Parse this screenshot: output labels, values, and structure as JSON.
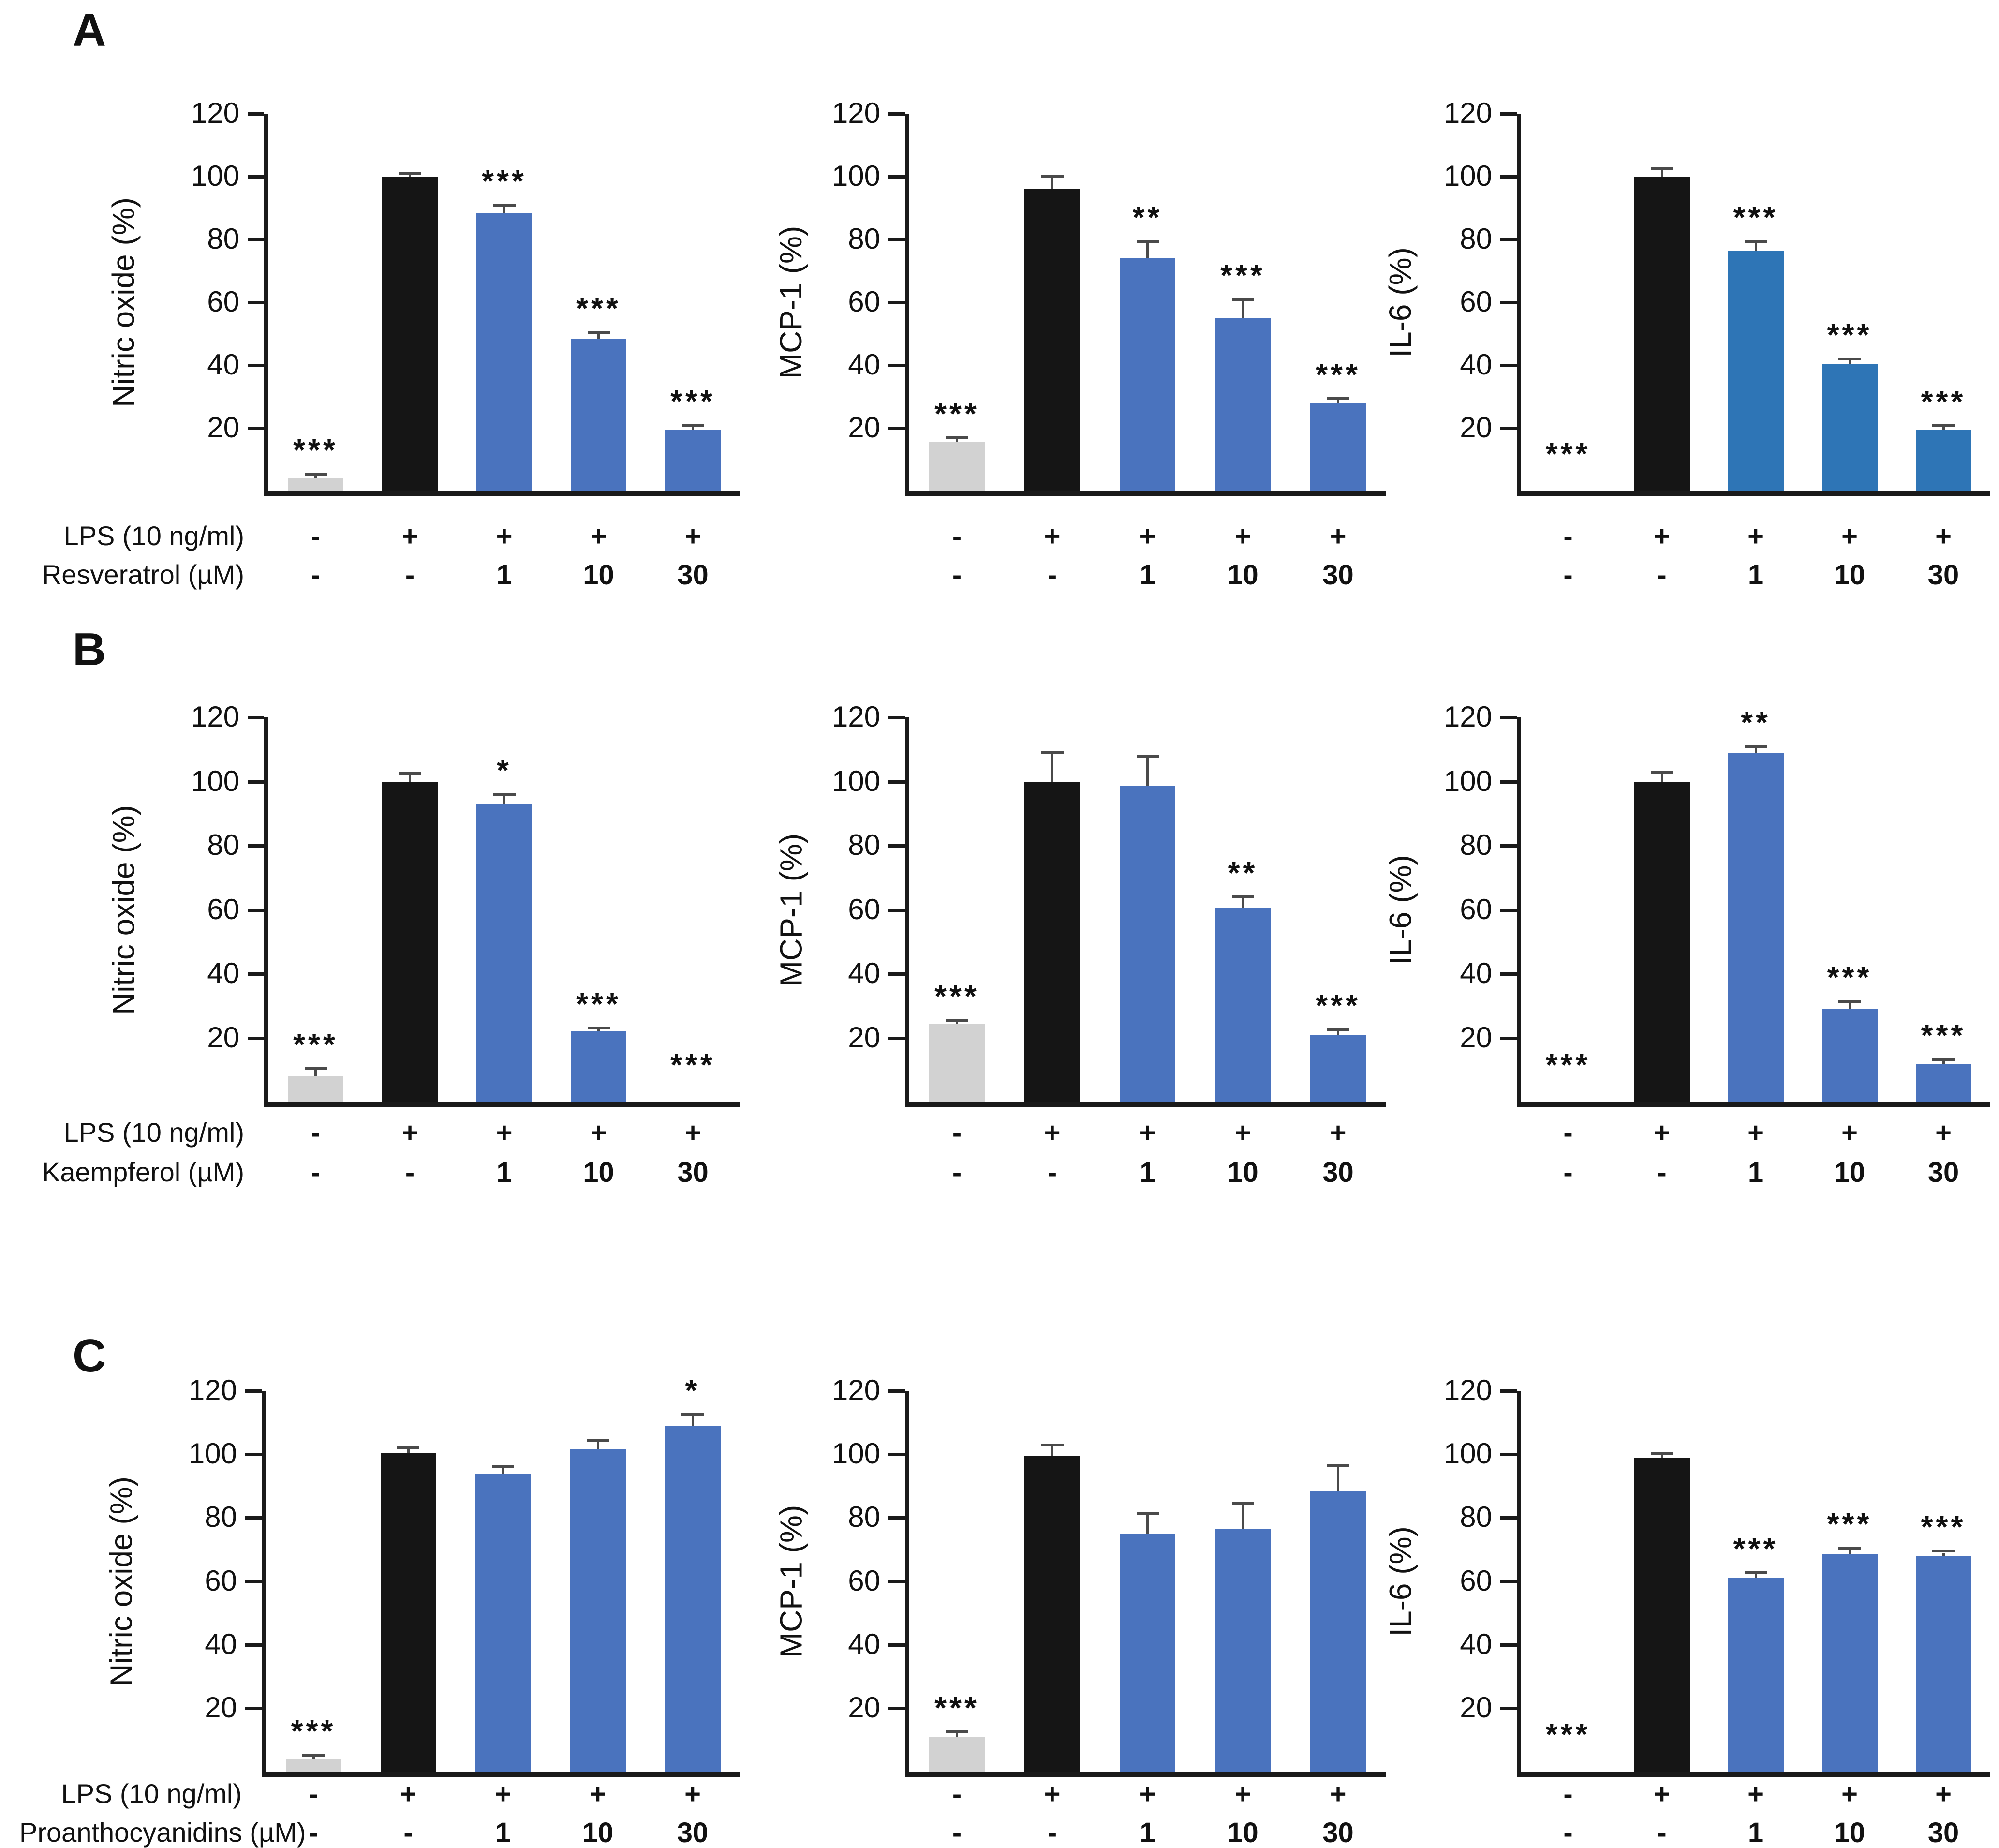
{
  "figure": {
    "panels": [
      {
        "letter": "A",
        "treatment_label": "Resveratrol (µM)"
      },
      {
        "letter": "B",
        "treatment_label": "Kaempferol (µM)"
      },
      {
        "letter": "C",
        "treatment_label": "Proanthocyanidins (µM)"
      }
    ],
    "lps_label": "LPS (10 ng/ml)",
    "colors": {
      "control_bar": "#d2d2d2",
      "lps_bar": "#151515",
      "treatment_bar": "#4a73be",
      "treatment_bar_alt": "#2e75b6",
      "error_bar": "#4a4a4a",
      "axis": "#1a1a1a"
    }
  },
  "chart_data": [
    {
      "type": "bar",
      "panel": "A",
      "ylabel": "Nitric oxide (%)",
      "ylim": [
        0,
        120
      ],
      "yticks": [
        20,
        40,
        60,
        80,
        100,
        120
      ],
      "grid": false,
      "legend": "none",
      "lps_row": [
        "-",
        "+",
        "+",
        "+",
        "+"
      ],
      "treatment_label": "Resveratrol (µM)",
      "treatment_row": [
        "-",
        "-",
        "1",
        "10",
        "30"
      ],
      "values": [
        4,
        100,
        88.5,
        48.5,
        19.5
      ],
      "errors": [
        1,
        0.5,
        2,
        1.5,
        1
      ],
      "significance": [
        "***",
        "",
        "***",
        "***",
        "***"
      ],
      "bar_color": "#4a73be"
    },
    {
      "type": "bar",
      "panel": "A",
      "ylabel": "MCP-1 (%)",
      "ylim": [
        0,
        120
      ],
      "yticks": [
        20,
        40,
        60,
        80,
        100,
        120
      ],
      "grid": false,
      "legend": "none",
      "lps_row": [
        "-",
        "+",
        "+",
        "+",
        "+"
      ],
      "treatment_label": "Resveratrol (µM)",
      "treatment_row": [
        "-",
        "-",
        "1",
        "10",
        "30"
      ],
      "values": [
        15.5,
        96,
        74,
        55,
        28
      ],
      "errors": [
        1,
        3.5,
        5,
        5.5,
        1
      ],
      "significance": [
        "***",
        "",
        "**",
        "***",
        "***"
      ],
      "bar_color": "#4a73be"
    },
    {
      "type": "bar",
      "panel": "A",
      "ylabel": "IL-6 (%)",
      "ylim": [
        0,
        120
      ],
      "yticks": [
        20,
        40,
        60,
        80,
        100,
        120
      ],
      "grid": false,
      "legend": "none",
      "lps_row": [
        "-",
        "+",
        "+",
        "+",
        "+"
      ],
      "treatment_label": "Resveratrol (µM)",
      "treatment_row": [
        "-",
        "-",
        "1",
        "10",
        "30"
      ],
      "values": [
        0,
        100,
        76.5,
        40.5,
        19.5
      ],
      "errors": [
        0,
        2,
        2.5,
        1,
        0.8
      ],
      "significance": [
        "***",
        "",
        "***",
        "***",
        "***"
      ],
      "bar_color": "#2e75b6"
    },
    {
      "type": "bar",
      "panel": "B",
      "ylabel": "Nitric oxide (%)",
      "ylim": [
        0,
        120
      ],
      "yticks": [
        20,
        40,
        60,
        80,
        100,
        120
      ],
      "grid": false,
      "legend": "none",
      "lps_row": [
        "-",
        "+",
        "+",
        "+",
        "+"
      ],
      "treatment_label": "Kaempferol (µM)",
      "treatment_row": [
        "-",
        "-",
        "1",
        "10",
        "30"
      ],
      "values": [
        8,
        100,
        93,
        22,
        0
      ],
      "errors": [
        2,
        2,
        2.5,
        0.7,
        0
      ],
      "significance": [
        "***",
        "",
        "*",
        "***",
        "***"
      ],
      "bar_color": "#4a73be"
    },
    {
      "type": "bar",
      "panel": "B",
      "ylabel": "MCP-1 (%)",
      "ylim": [
        0,
        120
      ],
      "yticks": [
        20,
        40,
        60,
        80,
        100,
        120
      ],
      "grid": false,
      "legend": "none",
      "lps_row": [
        "-",
        "+",
        "+",
        "+",
        "+"
      ],
      "treatment_label": "Kaempferol (µM)",
      "treatment_row": [
        "-",
        "-",
        "1",
        "10",
        "30"
      ],
      "values": [
        24.5,
        100,
        98.5,
        60.5,
        21
      ],
      "errors": [
        0.6,
        8.5,
        9,
        3,
        1.2
      ],
      "significance": [
        "***",
        "",
        "",
        "**",
        "***"
      ],
      "bar_color": "#4a73be"
    },
    {
      "type": "bar",
      "panel": "B",
      "ylabel": "IL-6 (%)",
      "ylim": [
        0,
        120
      ],
      "yticks": [
        20,
        40,
        60,
        80,
        100,
        120
      ],
      "grid": false,
      "legend": "none",
      "lps_row": [
        "-",
        "+",
        "+",
        "+",
        "+"
      ],
      "treatment_label": "Kaempferol (µM)",
      "treatment_row": [
        "-",
        "-",
        "1",
        "10",
        "30"
      ],
      "values": [
        0,
        100,
        109,
        29,
        12
      ],
      "errors": [
        0,
        2.5,
        1.5,
        2,
        0.8
      ],
      "significance": [
        "***",
        "",
        "**",
        "***",
        "***"
      ],
      "bar_color": "#4a73be"
    },
    {
      "type": "bar",
      "panel": "C",
      "ylabel": "Nitric oxide (%)",
      "ylim": [
        0,
        120
      ],
      "yticks": [
        20,
        40,
        60,
        80,
        100,
        120
      ],
      "grid": false,
      "legend": "none",
      "lps_row": [
        "-",
        "+",
        "+",
        "+",
        "+"
      ],
      "treatment_label": "Proanthocyanidins (µM)",
      "treatment_row": [
        "-",
        "-",
        "1",
        "10",
        "30"
      ],
      "values": [
        4,
        100.5,
        94,
        101.5,
        109
      ],
      "errors": [
        0.7,
        1,
        1.7,
        2.3,
        3
      ],
      "significance": [
        "***",
        "",
        "",
        "",
        "*"
      ],
      "bar_color": "#4a73be"
    },
    {
      "type": "bar",
      "panel": "C",
      "ylabel": "MCP-1 (%)",
      "ylim": [
        0,
        120
      ],
      "yticks": [
        20,
        40,
        60,
        80,
        100,
        120
      ],
      "grid": false,
      "legend": "none",
      "lps_row": [
        "-",
        "+",
        "+",
        "+",
        "+"
      ],
      "treatment_label": "Proanthocyanidins (µM)",
      "treatment_row": [
        "-",
        "-",
        "1",
        "10",
        "30"
      ],
      "values": [
        11,
        99.5,
        75,
        76.5,
        88.5
      ],
      "errors": [
        1,
        3,
        6,
        7.5,
        7.5
      ],
      "significance": [
        "***",
        "",
        "",
        "",
        ""
      ],
      "bar_color": "#4a73be"
    },
    {
      "type": "bar",
      "panel": "C",
      "ylabel": "IL-6 (%)",
      "ylim": [
        0,
        120
      ],
      "yticks": [
        20,
        40,
        60,
        80,
        100,
        120
      ],
      "grid": false,
      "legend": "none",
      "lps_row": [
        "-",
        "+",
        "+",
        "+",
        "+"
      ],
      "treatment_label": "Proanthocyanidins (µM)",
      "treatment_row": [
        "-",
        "-",
        "1",
        "10",
        "30"
      ],
      "values": [
        0,
        99,
        61,
        68.5,
        68
      ],
      "errors": [
        0,
        0.7,
        1.2,
        1.5,
        1
      ],
      "significance": [
        "***",
        "",
        "***",
        "***",
        "***"
      ],
      "bar_color": "#4a73be"
    }
  ]
}
